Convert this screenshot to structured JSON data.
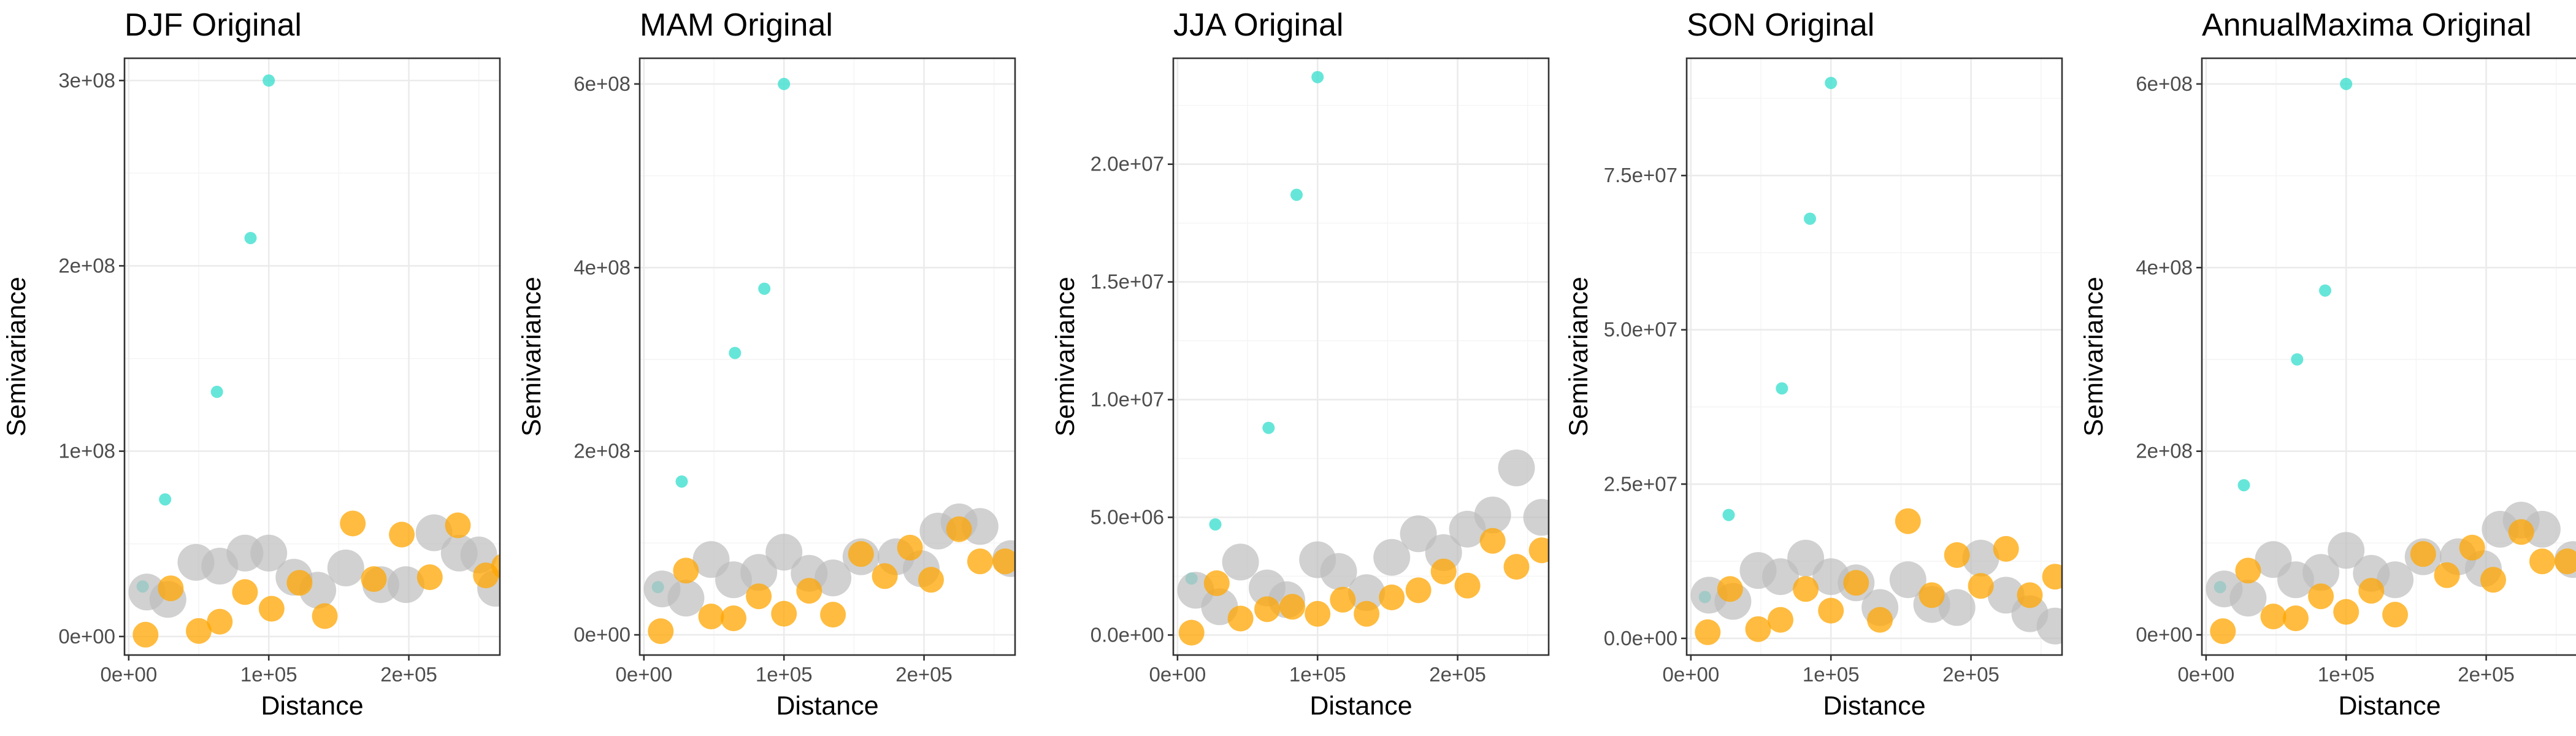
{
  "colors": {
    "cyan": "#40E0D0",
    "orange": "#FFA500",
    "gray": "#BEBEBE"
  },
  "chart_data": [
    {
      "type": "scatter",
      "title": "DJF Original",
      "xlabel": "Distance",
      "ylabel": "Semivariance",
      "xlim": [
        -3000,
        265000
      ],
      "ylim": [
        -10000000,
        312000000
      ],
      "xticks": [
        0,
        100000,
        200000
      ],
      "xtick_labels": [
        "0e+00",
        "1e+05",
        "2e+05"
      ],
      "yticks": [
        0,
        100000000,
        200000000,
        300000000
      ],
      "ytick_labels": [
        "0e+00",
        "1e+08",
        "2e+08",
        "3e+08"
      ],
      "grid": true,
      "series": [
        {
          "color": "cyan",
          "size": "small",
          "points": [
            [
              10000,
              27000000
            ],
            [
              26000,
              74000000
            ],
            [
              63000,
              132000000
            ],
            [
              87000,
              215000000
            ],
            [
              100000,
              300000000
            ]
          ]
        },
        {
          "color": "gray",
          "size": "large",
          "points": [
            [
              13000,
              24000000
            ],
            [
              28000,
              20000000
            ],
            [
              48000,
              40000000
            ],
            [
              65000,
              38000000
            ],
            [
              83000,
              45000000
            ],
            [
              100000,
              45000000
            ],
            [
              118000,
              32000000
            ],
            [
              135000,
              25000000
            ],
            [
              155000,
              37000000
            ],
            [
              180000,
              28000000
            ],
            [
              198000,
              28000000
            ],
            [
              218000,
              56000000
            ],
            [
              236000,
              45000000
            ],
            [
              250000,
              44000000
            ],
            [
              262000,
              26000000
            ]
          ]
        },
        {
          "color": "orange",
          "size": "medium",
          "points": [
            [
              12000,
              1000000
            ],
            [
              30000,
              26000000
            ],
            [
              50000,
              3000000
            ],
            [
              65000,
              8000000
            ],
            [
              83000,
              24000000
            ],
            [
              102000,
              15000000
            ],
            [
              122000,
              29000000
            ],
            [
              140000,
              11000000
            ],
            [
              160000,
              61000000
            ],
            [
              175000,
              31000000
            ],
            [
              195000,
              55000000
            ],
            [
              215000,
              32000000
            ],
            [
              235000,
              60000000
            ],
            [
              255000,
              33000000
            ],
            [
              268000,
              38000000
            ]
          ]
        }
      ]
    },
    {
      "type": "scatter",
      "title": "MAM Original",
      "xlabel": "Distance",
      "ylabel": "Semivariance",
      "xlim": [
        -3000,
        265000
      ],
      "ylim": [
        -22000000,
        628000000
      ],
      "xticks": [
        0,
        100000,
        200000
      ],
      "xtick_labels": [
        "0e+00",
        "1e+05",
        "2e+05"
      ],
      "yticks": [
        0,
        200000000,
        400000000,
        600000000
      ],
      "ytick_labels": [
        "0e+00",
        "2e+08",
        "4e+08",
        "6e+08"
      ],
      "grid": true,
      "series": [
        {
          "color": "cyan",
          "size": "small",
          "points": [
            [
              10000,
              52000000
            ],
            [
              27000,
              167000000
            ],
            [
              65000,
              307000000
            ],
            [
              86000,
              377000000
            ],
            [
              100000,
              600000000
            ]
          ]
        },
        {
          "color": "gray",
          "size": "large",
          "points": [
            [
              13000,
              50000000
            ],
            [
              30000,
              40000000
            ],
            [
              48000,
              82000000
            ],
            [
              64000,
              60000000
            ],
            [
              82000,
              68000000
            ],
            [
              100000,
              90000000
            ],
            [
              118000,
              67000000
            ],
            [
              135000,
              62000000
            ],
            [
              155000,
              85000000
            ],
            [
              180000,
              85000000
            ],
            [
              198000,
              72000000
            ],
            [
              210000,
              113000000
            ],
            [
              225000,
              123000000
            ],
            [
              240000,
              118000000
            ],
            [
              262000,
              83000000
            ]
          ]
        },
        {
          "color": "orange",
          "size": "medium",
          "points": [
            [
              12000,
              4000000
            ],
            [
              30000,
              70000000
            ],
            [
              48000,
              20000000
            ],
            [
              64000,
              18000000
            ],
            [
              82000,
              42000000
            ],
            [
              100000,
              23000000
            ],
            [
              118000,
              48000000
            ],
            [
              135000,
              22000000
            ],
            [
              155000,
              88000000
            ],
            [
              172000,
              64000000
            ],
            [
              190000,
              95000000
            ],
            [
              205000,
              60000000
            ],
            [
              225000,
              115000000
            ],
            [
              240000,
              80000000
            ],
            [
              258000,
              80000000
            ]
          ]
        }
      ]
    },
    {
      "type": "scatter",
      "title": "JJA Original",
      "xlabel": "Distance",
      "ylabel": "Semivariance",
      "xlim": [
        -3000,
        265000
      ],
      "ylim": [
        -850000,
        24500000
      ],
      "xticks": [
        0,
        100000,
        200000
      ],
      "xtick_labels": [
        "0e+00",
        "1e+05",
        "2e+05"
      ],
      "yticks": [
        0,
        5000000,
        10000000,
        15000000,
        20000000
      ],
      "ytick_labels": [
        "0.0e+00",
        "5.0e+06",
        "1.0e+07",
        "1.5e+07",
        "2.0e+07"
      ],
      "grid": true,
      "series": [
        {
          "color": "cyan",
          "size": "small",
          "points": [
            [
              10000,
              2400000
            ],
            [
              27000,
              4700000
            ],
            [
              65000,
              8800000
            ],
            [
              85000,
              18700000
            ],
            [
              100000,
              23700000
            ]
          ]
        },
        {
          "color": "gray",
          "size": "large",
          "points": [
            [
              13000,
              1900000
            ],
            [
              30000,
              1200000
            ],
            [
              45000,
              3100000
            ],
            [
              64000,
              2000000
            ],
            [
              78000,
              1500000
            ],
            [
              100000,
              3200000
            ],
            [
              115000,
              2700000
            ],
            [
              135000,
              1800000
            ],
            [
              153000,
              3300000
            ],
            [
              172000,
              4300000
            ],
            [
              190000,
              3500000
            ],
            [
              207000,
              4500000
            ],
            [
              225000,
              5100000
            ],
            [
              242000,
              7100000
            ],
            [
              260000,
              5000000
            ]
          ]
        },
        {
          "color": "orange",
          "size": "medium",
          "points": [
            [
              10000,
              100000
            ],
            [
              28000,
              2200000
            ],
            [
              45000,
              700000
            ],
            [
              64000,
              1100000
            ],
            [
              82000,
              1200000
            ],
            [
              100000,
              900000
            ],
            [
              118000,
              1500000
            ],
            [
              135000,
              900000
            ],
            [
              153000,
              1600000
            ],
            [
              172000,
              1900000
            ],
            [
              190000,
              2700000
            ],
            [
              207000,
              2100000
            ],
            [
              225000,
              4000000
            ],
            [
              242000,
              2900000
            ],
            [
              260000,
              3600000
            ]
          ]
        }
      ]
    },
    {
      "type": "scatter",
      "title": "SON Original",
      "xlabel": "Distance",
      "ylabel": "Semivariance",
      "xlim": [
        -3000,
        265000
      ],
      "ylim": [
        -2700000,
        94000000
      ],
      "xticks": [
        0,
        100000,
        200000
      ],
      "xtick_labels": [
        "0e+00",
        "1e+05",
        "2e+05"
      ],
      "yticks": [
        0,
        25000000,
        50000000,
        75000000
      ],
      "ytick_labels": [
        "0.0e+00",
        "2.5e+07",
        "5.0e+07",
        "7.5e+07"
      ],
      "grid": true,
      "series": [
        {
          "color": "cyan",
          "size": "small",
          "points": [
            [
              10000,
              6700000
            ],
            [
              27000,
              20000000
            ],
            [
              65000,
              40500000
            ],
            [
              85000,
              68000000
            ],
            [
              100000,
              90000000
            ]
          ]
        },
        {
          "color": "gray",
          "size": "large",
          "points": [
            [
              13000,
              7000000
            ],
            [
              30000,
              6000000
            ],
            [
              48000,
              11000000
            ],
            [
              64000,
              10000000
            ],
            [
              82000,
              13000000
            ],
            [
              100000,
              10000000
            ],
            [
              118000,
              9000000
            ],
            [
              135000,
              5000000
            ],
            [
              155000,
              9500000
            ],
            [
              172000,
              5500000
            ],
            [
              190000,
              5000000
            ],
            [
              207000,
              13000000
            ],
            [
              225000,
              7000000
            ],
            [
              242000,
              4000000
            ],
            [
              260000,
              2000000
            ]
          ]
        },
        {
          "color": "orange",
          "size": "medium",
          "points": [
            [
              12000,
              1000000
            ],
            [
              28000,
              8000000
            ],
            [
              48000,
              1500000
            ],
            [
              64000,
              3000000
            ],
            [
              82000,
              8000000
            ],
            [
              100000,
              4500000
            ],
            [
              118000,
              9000000
            ],
            [
              135000,
              3000000
            ],
            [
              155000,
              19000000
            ],
            [
              172000,
              7000000
            ],
            [
              190000,
              13500000
            ],
            [
              207000,
              8500000
            ],
            [
              225000,
              14500000
            ],
            [
              242000,
              7000000
            ],
            [
              260000,
              10000000
            ]
          ]
        }
      ]
    },
    {
      "type": "scatter",
      "title": "AnnualMaxima Original",
      "xlabel": "Distance",
      "ylabel": "Semivariance",
      "xlim": [
        -3000,
        265000
      ],
      "ylim": [
        -22000000,
        628000000
      ],
      "xticks": [
        0,
        100000,
        200000
      ],
      "xtick_labels": [
        "0e+00",
        "1e+05",
        "2e+05"
      ],
      "yticks": [
        0,
        200000000,
        400000000,
        600000000
      ],
      "ytick_labels": [
        "0e+00",
        "2e+08",
        "4e+08",
        "6e+08"
      ],
      "grid": true,
      "series": [
        {
          "color": "cyan",
          "size": "small",
          "points": [
            [
              10000,
              52000000
            ],
            [
              27000,
              163000000
            ],
            [
              65000,
              300000000
            ],
            [
              85000,
              375000000
            ],
            [
              100000,
              600000000
            ]
          ]
        },
        {
          "color": "gray",
          "size": "large",
          "points": [
            [
              13000,
              50000000
            ],
            [
              30000,
              40000000
            ],
            [
              48000,
              82000000
            ],
            [
              64000,
              60000000
            ],
            [
              82000,
              68000000
            ],
            [
              100000,
              92000000
            ],
            [
              118000,
              67000000
            ],
            [
              135000,
              60000000
            ],
            [
              155000,
              85000000
            ],
            [
              180000,
              85000000
            ],
            [
              198000,
              72000000
            ],
            [
              210000,
              115000000
            ],
            [
              225000,
              125000000
            ],
            [
              240000,
              115000000
            ],
            [
              262000,
              82000000
            ]
          ]
        },
        {
          "color": "orange",
          "size": "medium",
          "points": [
            [
              12000,
              4000000
            ],
            [
              30000,
              70000000
            ],
            [
              48000,
              20000000
            ],
            [
              64000,
              18000000
            ],
            [
              82000,
              42000000
            ],
            [
              100000,
              25000000
            ],
            [
              118000,
              48000000
            ],
            [
              135000,
              22000000
            ],
            [
              155000,
              88000000
            ],
            [
              172000,
              65000000
            ],
            [
              190000,
              95000000
            ],
            [
              205000,
              60000000
            ],
            [
              225000,
              112000000
            ],
            [
              240000,
              80000000
            ],
            [
              258000,
              80000000
            ]
          ]
        }
      ]
    }
  ]
}
